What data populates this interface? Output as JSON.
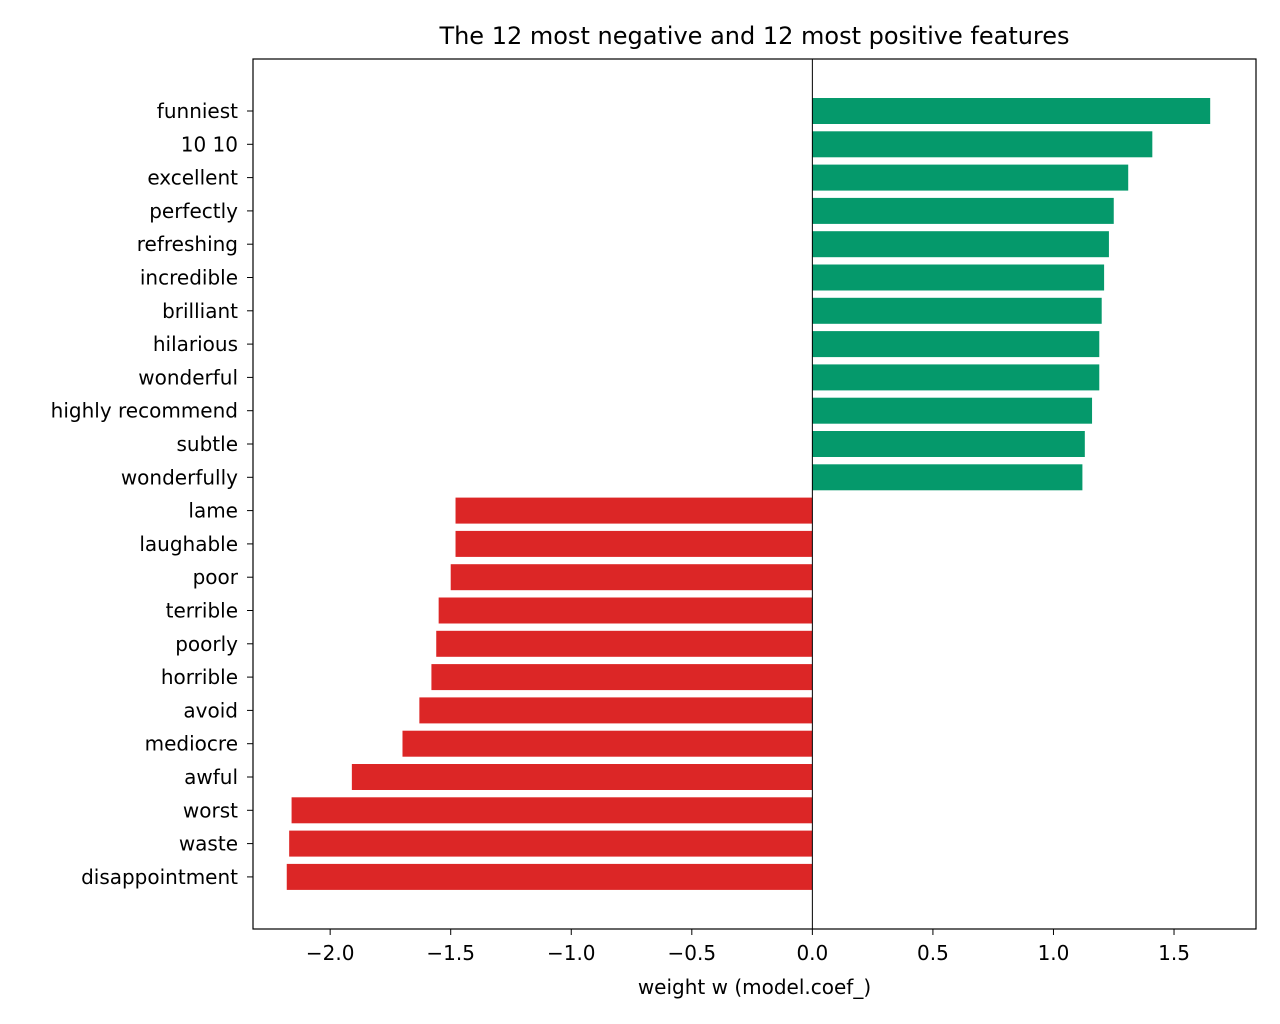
{
  "colors": {
    "positive": "#05996b",
    "negative": "#dc2626",
    "axis": "#000000",
    "background": "#ffffff"
  },
  "chart_data": {
    "type": "bar",
    "orientation": "horizontal",
    "title": "The 12 most negative and 12 most positive features",
    "xlabel": "weight w (model.coef_)",
    "ylabel": "",
    "xlim": [
      -2.32,
      1.84
    ],
    "xticks": [
      -2.0,
      -1.5,
      -1.0,
      -0.5,
      0.0,
      0.5,
      1.0,
      1.5
    ],
    "xtick_labels": [
      "−2.0",
      "−1.5",
      "−1.0",
      "−0.5",
      "0.0",
      "0.5",
      "1.0",
      "1.5"
    ],
    "zero_line": true,
    "grid": false,
    "legend": "none",
    "categories": [
      "funniest",
      "10 10",
      "excellent",
      "perfectly",
      "refreshing",
      "incredible",
      "brilliant",
      "hilarious",
      "wonderful",
      "highly recommend",
      "subtle",
      "wonderfully",
      "lame",
      "laughable",
      "poor",
      "terrible",
      "poorly",
      "horrible",
      "avoid",
      "mediocre",
      "awful",
      "worst",
      "waste",
      "disappointment"
    ],
    "values": [
      1.65,
      1.41,
      1.31,
      1.25,
      1.23,
      1.21,
      1.2,
      1.19,
      1.19,
      1.16,
      1.13,
      1.12,
      -1.48,
      -1.48,
      -1.5,
      -1.55,
      -1.56,
      -1.58,
      -1.63,
      -1.7,
      -1.91,
      -2.16,
      -2.17,
      -2.18
    ]
  }
}
